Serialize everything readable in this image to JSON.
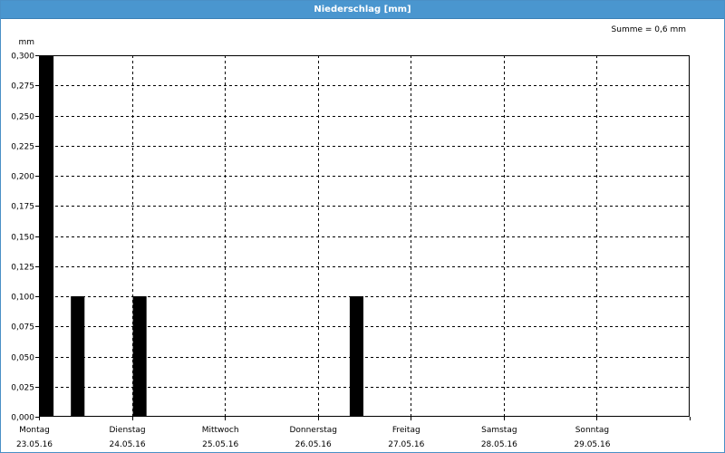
{
  "window": {
    "title": "Niederschlag [mm]"
  },
  "summary": {
    "text": "Summe = 0,6 mm"
  },
  "colors": {
    "titlebar": "#4a96cf",
    "bar": "#000000",
    "grid": "#000000",
    "background": "#ffffff"
  },
  "chart_data": {
    "type": "bar",
    "title": "Niederschlag [mm]",
    "ylabel": "mm",
    "xlabel": "",
    "ylim": [
      0,
      0.3
    ],
    "yticks": [
      "0,000",
      "0,025",
      "0,050",
      "0,075",
      "0,100",
      "0,125",
      "0,150",
      "0,175",
      "0,200",
      "0,225",
      "0,250",
      "0,275",
      "0,300"
    ],
    "xlim_days": [
      0,
      7
    ],
    "days": [
      {
        "name": "Montag",
        "date": "23.05.16"
      },
      {
        "name": "Dienstag",
        "date": "24.05.16"
      },
      {
        "name": "Mittwoch",
        "date": "25.05.16"
      },
      {
        "name": "Donnerstag",
        "date": "26.05.16"
      },
      {
        "name": "Freitag",
        "date": "27.05.16"
      },
      {
        "name": "Samstag",
        "date": "28.05.16"
      },
      {
        "name": "Sonntag",
        "date": "29.05.16"
      }
    ],
    "bars": [
      {
        "time": "23.05.16 00:00-04:00",
        "value": 0.3
      },
      {
        "time": "23.05.16 08:00-12:00",
        "value": 0.1
      },
      {
        "time": "24.05.16 00:00-04:00",
        "value": 0.1
      },
      {
        "time": "26.05.16 08:00-12:00",
        "value": 0.1
      }
    ],
    "grid": true,
    "legend": "none"
  }
}
